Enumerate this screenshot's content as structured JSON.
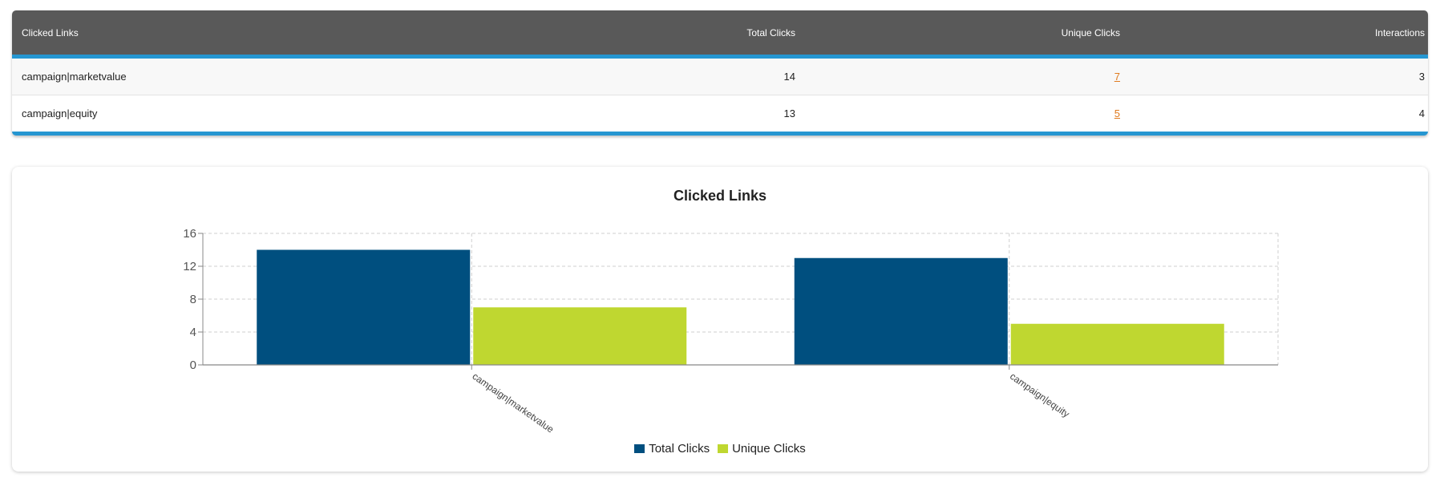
{
  "table": {
    "headers": [
      "Clicked Links",
      "Total Clicks",
      "Unique Clicks",
      "Interactions"
    ],
    "rows": [
      {
        "link": "campaign|marketvalue",
        "total": "14",
        "unique": "7",
        "interactions": "3"
      },
      {
        "link": "campaign|equity",
        "total": "13",
        "unique": "5",
        "interactions": "4"
      }
    ]
  },
  "colors": {
    "header_bg": "#595959",
    "accent": "#2596d1",
    "link": "#e07b1f",
    "series_total": "#004f7f",
    "series_unique": "#bfd730"
  },
  "chart_data": {
    "type": "bar",
    "title": "Clicked Links",
    "categories": [
      "campaign|marketvalue",
      "campaign|equity"
    ],
    "series": [
      {
        "name": "Total Clicks",
        "values": [
          14,
          13
        ]
      },
      {
        "name": "Unique Clicks",
        "values": [
          7,
          5
        ]
      }
    ],
    "ylim": [
      0,
      16
    ],
    "yticks": [
      0,
      4,
      8,
      12,
      16
    ],
    "grid": true,
    "legend": "bottom-center",
    "xlabel": "",
    "ylabel": ""
  }
}
